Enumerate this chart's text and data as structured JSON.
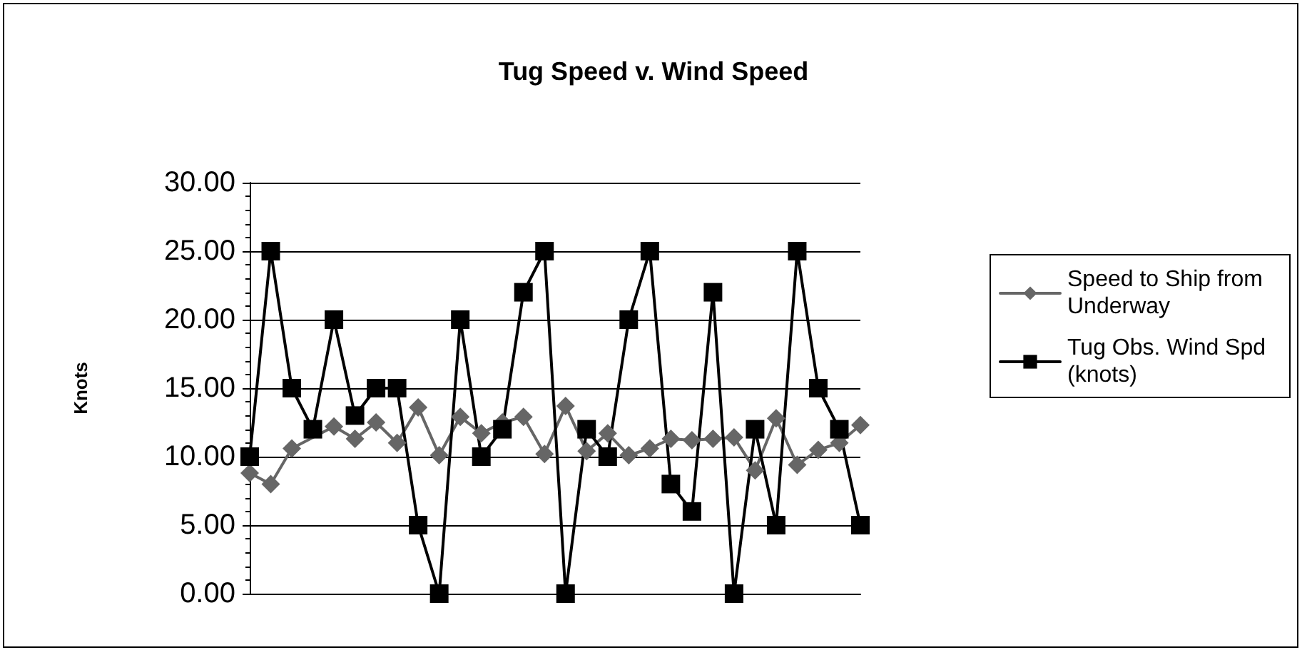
{
  "chart_data": {
    "type": "line",
    "title": "Tug Speed v. Wind Speed",
    "ylabel": "Knots",
    "categories": [
      null,
      null,
      null,
      null,
      null,
      null,
      null,
      null,
      null,
      null,
      null,
      null,
      null,
      null,
      null,
      null,
      null,
      null,
      null,
      null,
      null,
      null,
      null,
      null,
      null,
      null,
      null,
      null,
      null,
      null
    ],
    "series": [
      {
        "name": "Speed to Ship from Underway",
        "color": "#666666",
        "marker": "diamond",
        "values": [
          8.8,
          8.0,
          10.6,
          null,
          12.2,
          11.3,
          12.5,
          11.0,
          13.6,
          10.1,
          12.9,
          11.7,
          12.5,
          12.9,
          10.2,
          13.7,
          10.4,
          11.7,
          10.1,
          10.6,
          11.3,
          11.2,
          11.3,
          11.4,
          9.0,
          12.8,
          9.4,
          10.5,
          11.0,
          12.3
        ]
      },
      {
        "name": "Tug Obs. Wind Spd (knots)",
        "color": "#000000",
        "marker": "square",
        "values": [
          10,
          25,
          15,
          12,
          20,
          13,
          15,
          15,
          5,
          0,
          20,
          10,
          12,
          22,
          25,
          0,
          12,
          10,
          20,
          25,
          8,
          6,
          22,
          0,
          12,
          5,
          25,
          15,
          12,
          5
        ]
      }
    ],
    "ylim": [
      0,
      30
    ],
    "yticks": [
      {
        "value": 0,
        "label": "0.00"
      },
      {
        "value": 5,
        "label": "5.00"
      },
      {
        "value": 10,
        "label": "10.00"
      },
      {
        "value": 15,
        "label": "15.00"
      },
      {
        "value": 20,
        "label": "20.00"
      },
      {
        "value": 25,
        "label": "25.00"
      },
      {
        "value": 30,
        "label": "30.00"
      }
    ],
    "grid": "y",
    "legend": "right",
    "tick_labels": "y",
    "line_style": "solid"
  }
}
